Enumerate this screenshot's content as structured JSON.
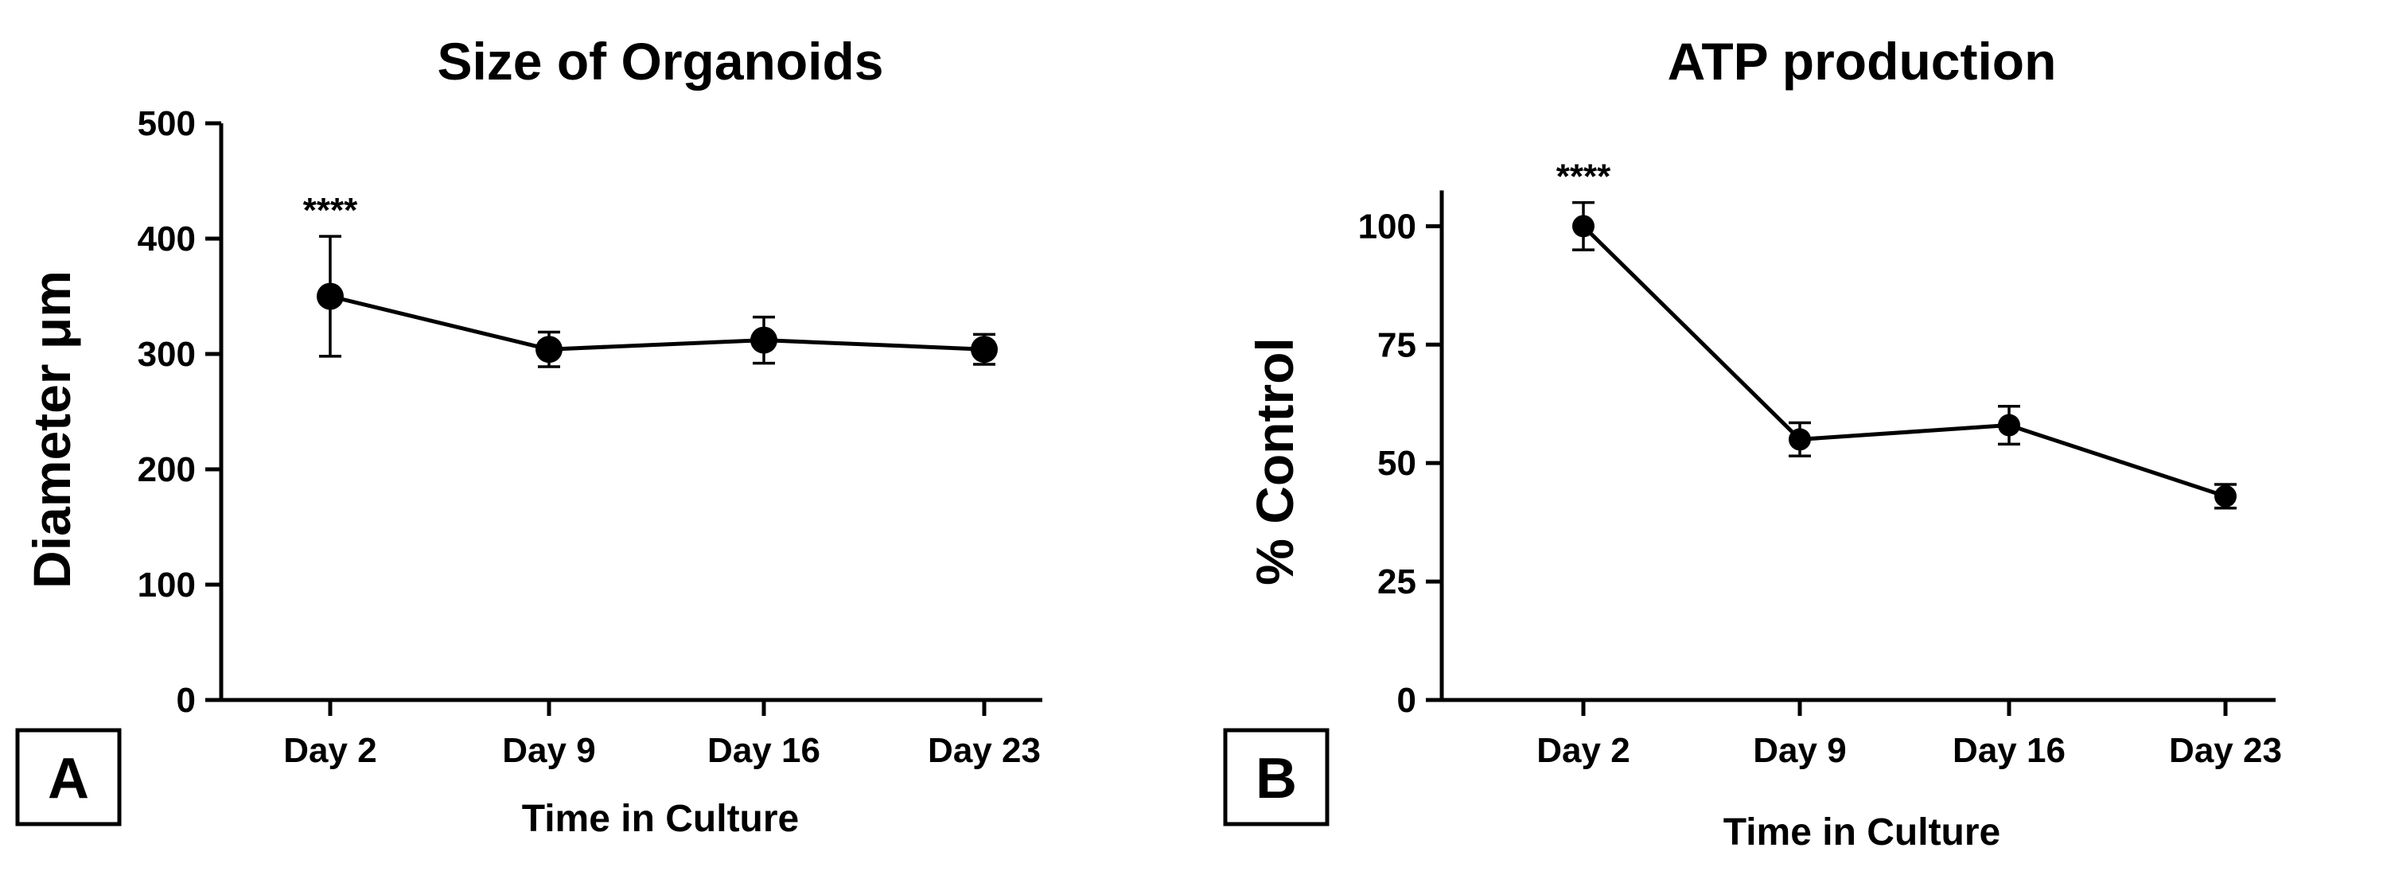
{
  "chart_data": [
    {
      "type": "line",
      "panel_label": "A",
      "title": "Size of Organoids",
      "xlabel": "Time in Culture",
      "ylabel": "Diameter μm",
      "categories": [
        "Day 2",
        "Day 9",
        "Day 16",
        "Day 23"
      ],
      "series": [
        {
          "values": [
            350,
            304,
            312,
            304
          ],
          "error": [
            52,
            15,
            20,
            13
          ],
          "color": "#000000"
        }
      ],
      "ylim": [
        0,
        500
      ],
      "yticks": [
        0,
        100,
        200,
        300,
        400,
        500
      ],
      "annotations": [
        {
          "category": "Day 2",
          "text": "****"
        }
      ],
      "grid": false
    },
    {
      "type": "line",
      "panel_label": "B",
      "title": "ATP production",
      "xlabel": "Time in Culture",
      "ylabel": "% Control",
      "categories": [
        "Day 2",
        "Day 9",
        "Day 16",
        "Day 23"
      ],
      "series": [
        {
          "values": [
            100,
            55,
            58,
            43
          ],
          "error": [
            5,
            3.5,
            4,
            2.5
          ],
          "color": "#000000"
        }
      ],
      "ylim": [
        0,
        115
      ],
      "yticks": [
        0,
        25,
        50,
        75,
        100
      ],
      "annotations": [
        {
          "category": "Day 2",
          "text": "****"
        }
      ],
      "grid": false
    }
  ]
}
